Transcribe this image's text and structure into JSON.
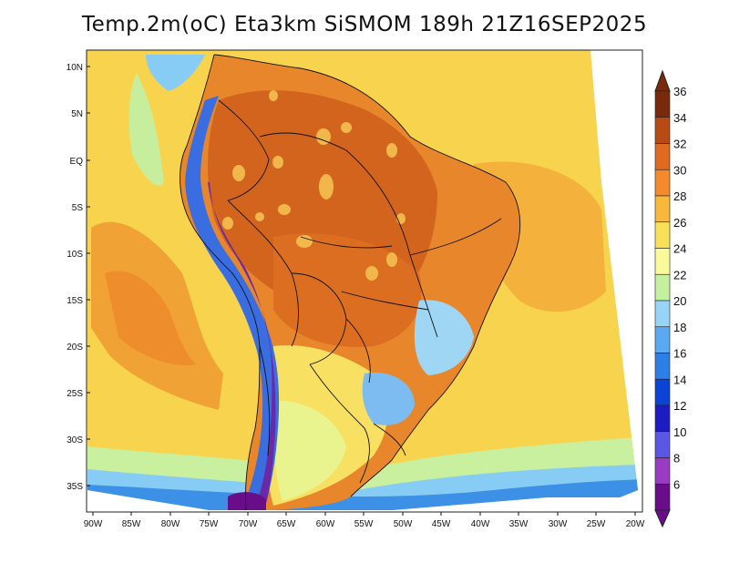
{
  "title": "Temp.2m(oC) Eta3km SiSMOM 189h 21Z16SEP2025",
  "lat_labels": [
    "10N",
    "5N",
    "EQ",
    "5S",
    "10S",
    "15S",
    "20S",
    "25S",
    "30S",
    "35S"
  ],
  "lon_labels": [
    "90W",
    "85W",
    "80W",
    "75W",
    "70W",
    "65W",
    "60W",
    "55W",
    "50W",
    "45W",
    "40W",
    "35W",
    "30W",
    "25W",
    "20W"
  ],
  "colorbar": {
    "levels": [
      "6",
      "8",
      "10",
      "12",
      "14",
      "16",
      "18",
      "20",
      "22",
      "24",
      "26",
      "28",
      "30",
      "32",
      "34",
      "36"
    ],
    "colors": [
      "#6a0d8a",
      "#9a3bc4",
      "#5a56e6",
      "#1c1cc2",
      "#0a44d6",
      "#2d7fe8",
      "#5aaaf2",
      "#98d4f6",
      "#c4f0a0",
      "#fafa9a",
      "#f8e058",
      "#f8b83c",
      "#f48a2c",
      "#e06a20",
      "#b84a14",
      "#7a2a0c"
    ]
  },
  "palette": {
    "ocean_warm": "#f6c84a",
    "ocean_mid": "#f8dc5a",
    "ocean_cool": "#b6e8a2",
    "ocean_cold": "#6ab8f0",
    "land_hot": "#d2641e",
    "land_warm": "#e8862c",
    "andes_cold": "#6a2aa8",
    "andes_mid": "#3a6ee0"
  }
}
